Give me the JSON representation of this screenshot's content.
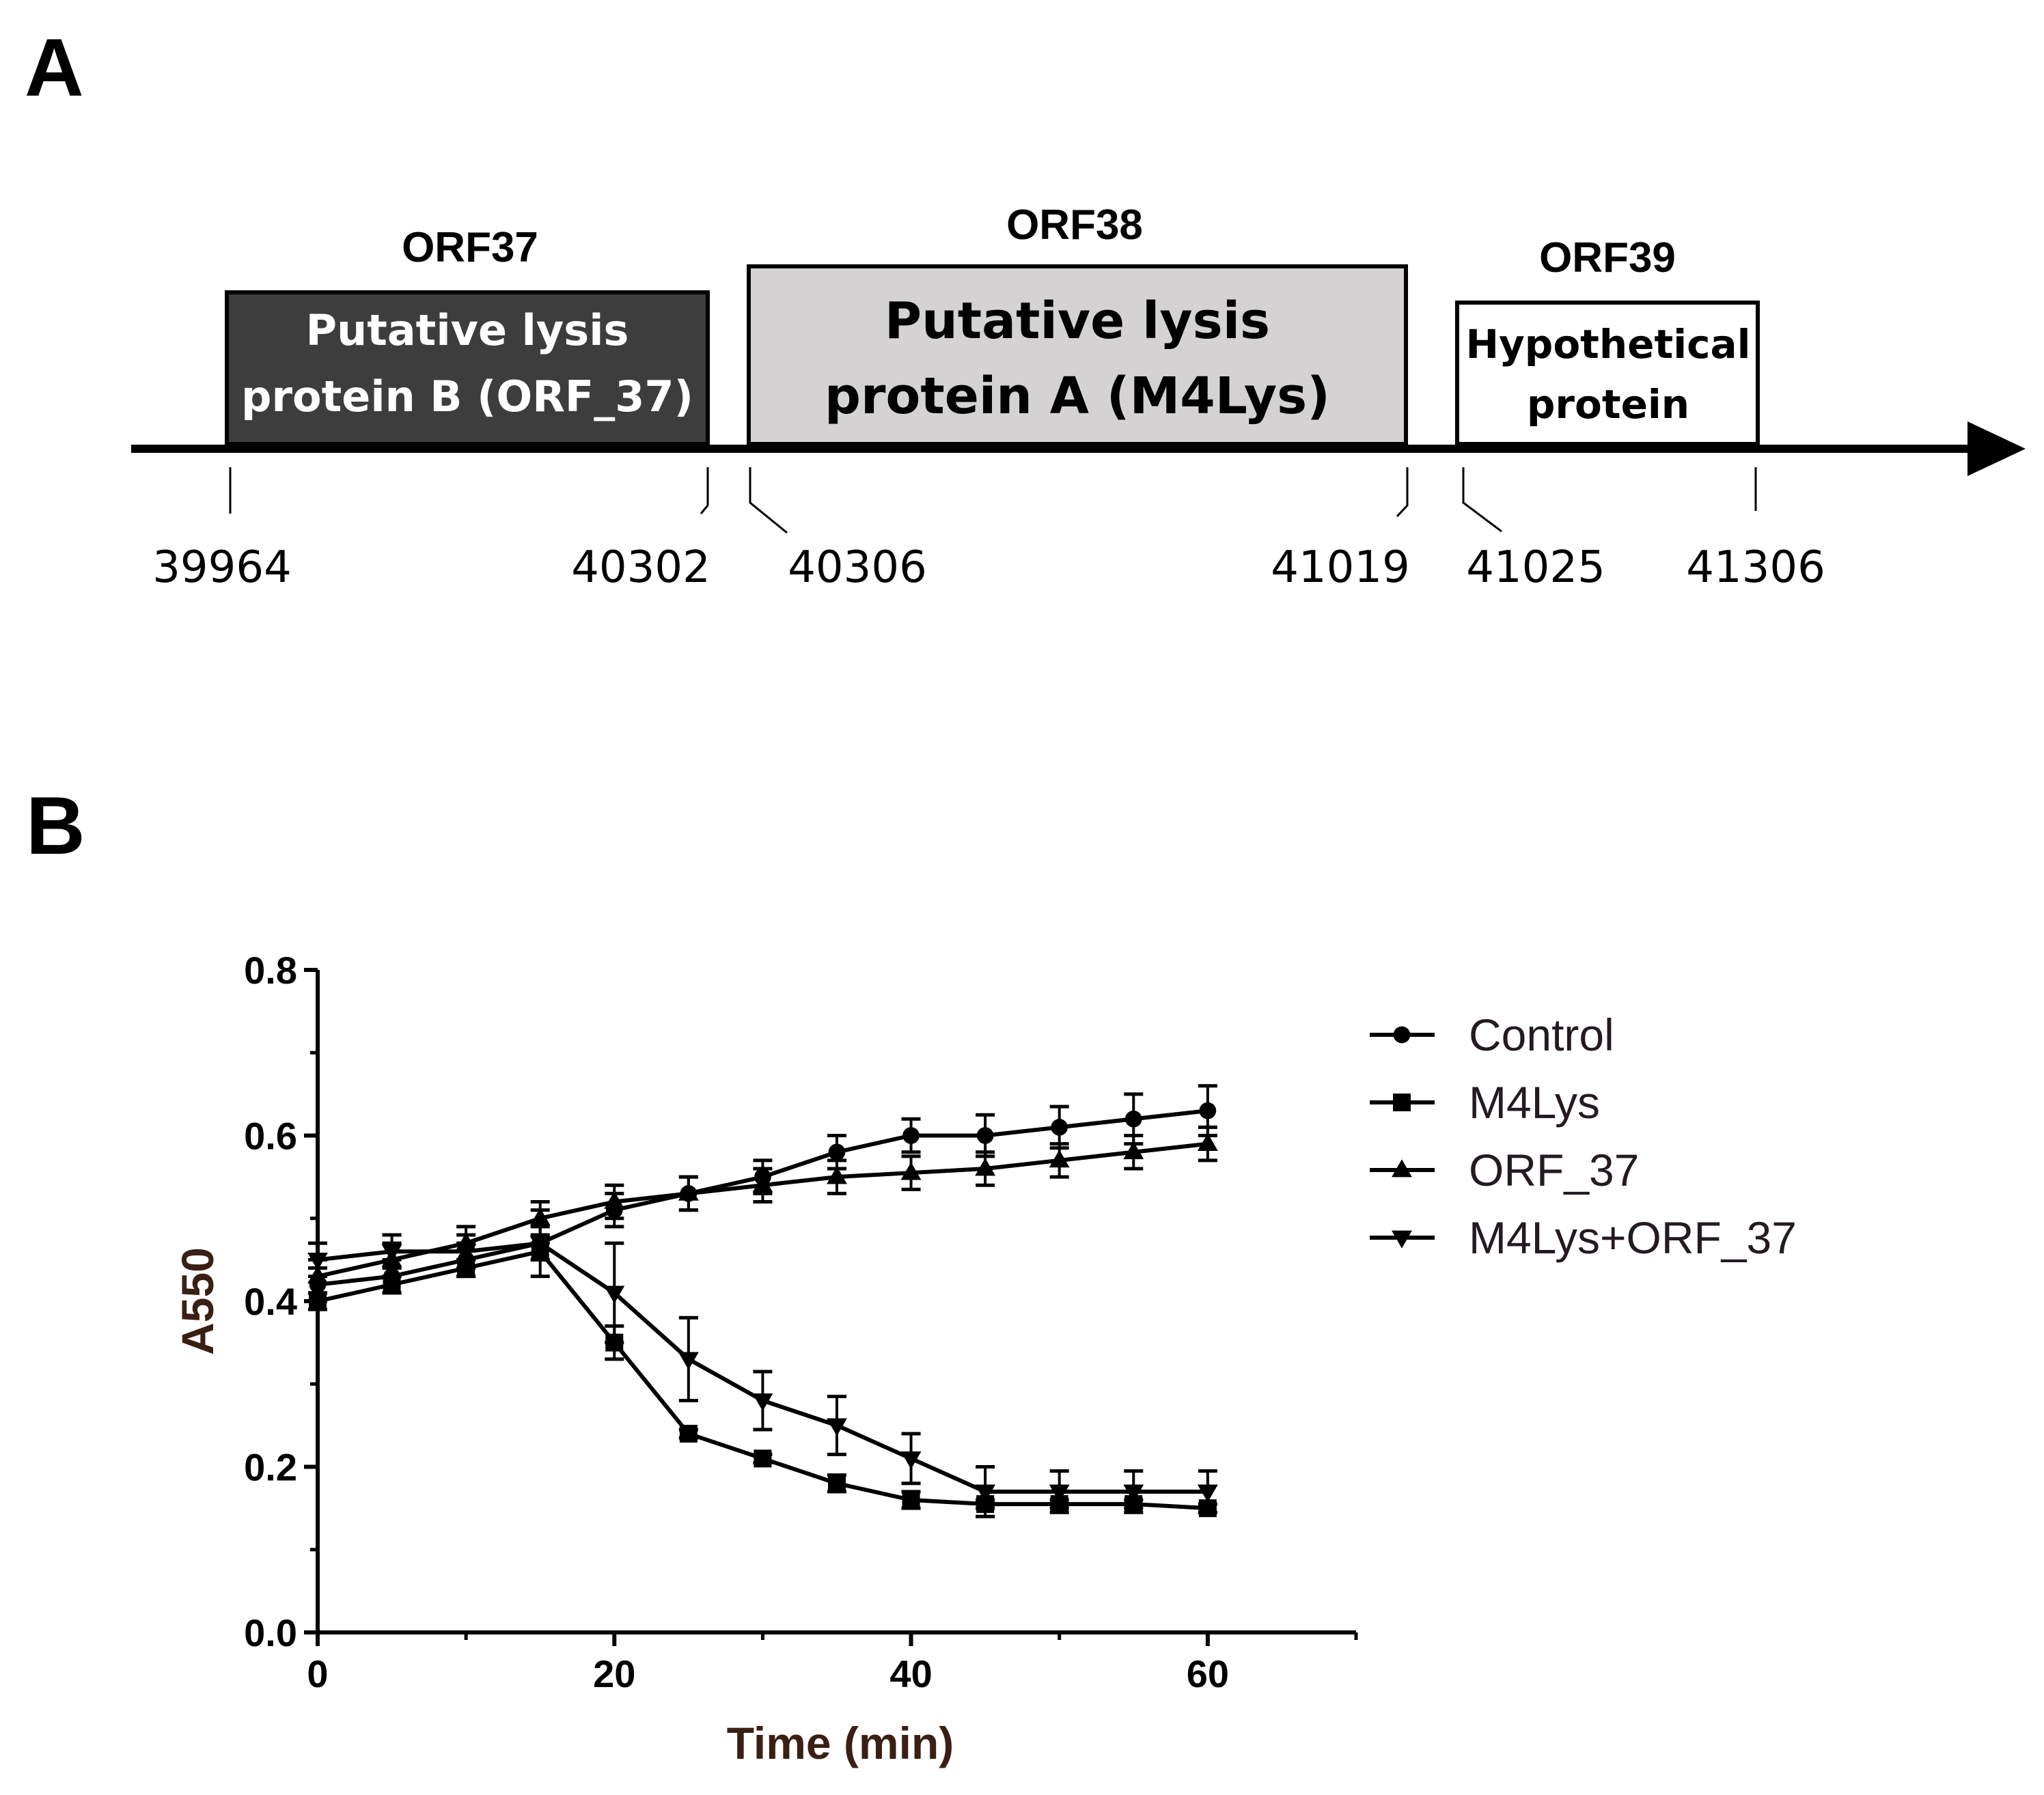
{
  "panelA": {
    "letter": "A",
    "genes": [
      {
        "name": "ORF37",
        "label_lines": [
          "Putative lysis",
          "protein B (ORF_37)"
        ],
        "start": "39964",
        "end": "40302",
        "fill": "#3d3d3d",
        "text_color": "#ffffff"
      },
      {
        "name": "ORF38",
        "label_lines": [
          "Putative lysis",
          "protein A (M4Lys)"
        ],
        "start": "40306",
        "end": "41019",
        "fill": "#d4d2d2",
        "text_color": "#000000"
      },
      {
        "name": "ORF39",
        "label_lines": [
          "Hypothetical",
          "protein"
        ],
        "start": "41025",
        "end": "41306",
        "fill": "#ffffff",
        "text_color": "#000000"
      }
    ]
  },
  "panelB": {
    "letter": "B",
    "chart_data": {
      "type": "line",
      "title": "",
      "xlabel": "Time (min)",
      "ylabel": "A550",
      "xlim": [
        0,
        70
      ],
      "ylim": [
        0,
        0.8
      ],
      "xticks": [
        "0",
        "20",
        "40",
        "60"
      ],
      "yticks": [
        "0.0",
        "0.2",
        "0.4",
        "0.6",
        "0.8"
      ],
      "x": [
        0,
        5,
        10,
        15,
        20,
        25,
        30,
        35,
        40,
        45,
        50,
        55,
        60
      ],
      "series": [
        {
          "name": "Control",
          "marker": "circle",
          "values": [
            0.42,
            0.43,
            0.45,
            0.47,
            0.51,
            0.53,
            0.55,
            0.58,
            0.6,
            0.6,
            0.61,
            0.62,
            0.63
          ],
          "errors": [
            0.02,
            0.02,
            0.02,
            0.02,
            0.02,
            0.02,
            0.02,
            0.02,
            0.02,
            0.025,
            0.025,
            0.03,
            0.03
          ]
        },
        {
          "name": "M4Lys",
          "marker": "square",
          "values": [
            0.4,
            0.42,
            0.44,
            0.46,
            0.35,
            0.24,
            0.21,
            0.18,
            0.16,
            0.155,
            0.155,
            0.155,
            0.15
          ],
          "errors": [
            0.01,
            0.01,
            0.01,
            0.01,
            0.02,
            0.005,
            0.005,
            0.01,
            0.01,
            0.005,
            0.005,
            0.005,
            0.005
          ]
        },
        {
          "name": "ORF_37",
          "marker": "triangle-up",
          "values": [
            0.43,
            0.45,
            0.47,
            0.5,
            0.52,
            0.53,
            0.54,
            0.55,
            0.555,
            0.56,
            0.57,
            0.58,
            0.59
          ],
          "errors": [
            0.02,
            0.02,
            0.02,
            0.02,
            0.02,
            0.02,
            0.02,
            0.02,
            0.02,
            0.02,
            0.02,
            0.02,
            0.02
          ]
        },
        {
          "name": "M4Lys+ORF_37",
          "marker": "triangle-down",
          "values": [
            0.45,
            0.46,
            0.46,
            0.47,
            0.41,
            0.33,
            0.28,
            0.25,
            0.21,
            0.17,
            0.17,
            0.17,
            0.17
          ],
          "errors": [
            0.02,
            0.02,
            0.02,
            0.04,
            0.06,
            0.05,
            0.035,
            0.035,
            0.03,
            0.03,
            0.025,
            0.025,
            0.025
          ]
        }
      ],
      "legend": "right"
    }
  }
}
